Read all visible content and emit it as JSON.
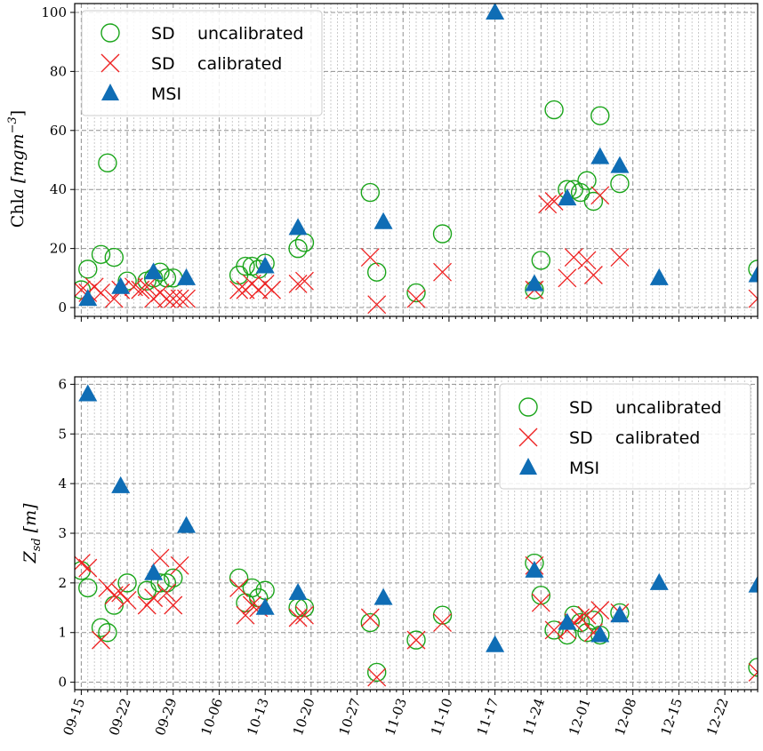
{
  "chart_data": [
    {
      "type": "scatter",
      "title": "",
      "xlabel": "",
      "ylabel": "Chl a [mg m^-3]",
      "ylabel_parts": {
        "main": "Chl",
        "italic": "a",
        "unit": "[mgm",
        "sup": "−3",
        "close": "]"
      },
      "xlim": [
        -1,
        103
      ],
      "ylim": [
        -3,
        103
      ],
      "yticks": [
        0,
        20,
        40,
        60,
        80,
        100
      ],
      "x_ticks": [
        {
          "day": 0,
          "label": "09-15"
        },
        {
          "day": 7,
          "label": "09-22"
        },
        {
          "day": 14,
          "label": "09-29"
        },
        {
          "day": 21,
          "label": "10-06"
        },
        {
          "day": 28,
          "label": "10-13"
        },
        {
          "day": 35,
          "label": "10-20"
        },
        {
          "day": 42,
          "label": "10-27"
        },
        {
          "day": 49,
          "label": "11-03"
        },
        {
          "day": 56,
          "label": "11-10"
        },
        {
          "day": 63,
          "label": "11-17"
        },
        {
          "day": 70,
          "label": "11-24"
        },
        {
          "day": 77,
          "label": "12-01"
        },
        {
          "day": 84,
          "label": "12-08"
        },
        {
          "day": 91,
          "label": "12-15"
        },
        {
          "day": 98,
          "label": "12-22"
        }
      ],
      "legend": {
        "location": "top-left",
        "entries": [
          {
            "series": "SD uncalibrated",
            "word1": "SD",
            "word2": "uncalibrated"
          },
          {
            "series": "SD calibrated",
            "word1": "SD",
            "word2": "calibrated"
          },
          {
            "series": "MSI",
            "word1": "MSI",
            "word2": ""
          }
        ]
      },
      "series": [
        {
          "name": "SD uncalibrated",
          "marker": "circle",
          "color": "#1aa51a",
          "x": [
            0,
            1,
            3,
            4,
            5,
            7,
            10,
            11,
            12,
            13,
            14,
            24,
            25,
            26,
            27,
            28,
            33,
            34,
            44,
            45,
            51,
            55,
            69,
            70,
            72,
            74,
            75,
            76,
            77,
            78,
            79,
            82,
            103
          ],
          "y": [
            6,
            13,
            18,
            49,
            17,
            9,
            9,
            10,
            12,
            10,
            10,
            11,
            14,
            14,
            13,
            15,
            20,
            22,
            39,
            12,
            5,
            25,
            6,
            16,
            67,
            40,
            40,
            39,
            43,
            36,
            65,
            42,
            13
          ]
        },
        {
          "name": "SD calibrated",
          "marker": "x",
          "color": "#ee2222",
          "x": [
            0,
            1,
            2,
            3,
            5,
            6,
            8,
            9,
            10,
            11,
            12,
            13,
            14,
            15,
            16,
            24,
            25,
            26,
            27,
            28,
            29,
            33,
            34,
            44,
            45,
            51,
            55,
            69,
            71,
            72,
            74,
            75,
            77,
            78,
            79,
            82,
            103
          ],
          "y": [
            6,
            5,
            7,
            5,
            3,
            6,
            7,
            6,
            7,
            3,
            5,
            3,
            3,
            3,
            3,
            6,
            6,
            8,
            6,
            8,
            6,
            8,
            9,
            17,
            1,
            3,
            12,
            6,
            35,
            36,
            10,
            17,
            16,
            11,
            38,
            17,
            3
          ]
        },
        {
          "name": "MSI",
          "marker": "triangle",
          "color": "#0f6db5",
          "x": [
            1,
            6,
            11,
            16,
            28,
            33,
            46,
            63,
            69,
            74,
            79,
            82,
            88,
            103
          ],
          "y": [
            3,
            7,
            12,
            10,
            14,
            27,
            29,
            100,
            8,
            37,
            51,
            48,
            10,
            11
          ]
        }
      ]
    },
    {
      "type": "scatter",
      "title": "",
      "xlabel": "",
      "ylabel": "Z_sd [m]",
      "ylabel_parts": {
        "main": "Z",
        "sub": "sd",
        "unit": "[m]"
      },
      "xlim": [
        -1,
        103
      ],
      "ylim": [
        -0.15,
        6.15
      ],
      "yticks": [
        0,
        1,
        2,
        3,
        4,
        5,
        6
      ],
      "x_ticks": [
        {
          "day": 0,
          "label": "09-15"
        },
        {
          "day": 7,
          "label": "09-22"
        },
        {
          "day": 14,
          "label": "09-29"
        },
        {
          "day": 21,
          "label": "10-06"
        },
        {
          "day": 28,
          "label": "10-13"
        },
        {
          "day": 35,
          "label": "10-20"
        },
        {
          "day": 42,
          "label": "10-27"
        },
        {
          "day": 49,
          "label": "11-03"
        },
        {
          "day": 56,
          "label": "11-10"
        },
        {
          "day": 63,
          "label": "11-17"
        },
        {
          "day": 70,
          "label": "11-24"
        },
        {
          "day": 77,
          "label": "12-01"
        },
        {
          "day": 84,
          "label": "12-08"
        },
        {
          "day": 91,
          "label": "12-15"
        },
        {
          "day": 98,
          "label": "12-22"
        }
      ],
      "legend": {
        "location": "top-right",
        "entries": [
          {
            "series": "SD uncalibrated",
            "word1": "SD",
            "word2": "uncalibrated"
          },
          {
            "series": "SD calibrated",
            "word1": "SD",
            "word2": "calibrated"
          },
          {
            "series": "MSI",
            "word1": "MSI",
            "word2": ""
          }
        ]
      },
      "series": [
        {
          "name": "SD uncalibrated",
          "marker": "circle",
          "color": "#1aa51a",
          "x": [
            0,
            1,
            3,
            4,
            5,
            7,
            10,
            12,
            13,
            14,
            24,
            25,
            26,
            27,
            28,
            33,
            34,
            44,
            45,
            51,
            55,
            69,
            70,
            72,
            74,
            75,
            76,
            77,
            78,
            79,
            82,
            103
          ],
          "y": [
            2.25,
            1.9,
            1.1,
            1.0,
            1.55,
            2.0,
            1.85,
            2.0,
            2.0,
            2.1,
            2.1,
            1.6,
            1.9,
            1.7,
            1.85,
            1.5,
            1.5,
            1.2,
            0.2,
            0.85,
            1.35,
            2.4,
            1.75,
            1.05,
            0.95,
            1.35,
            1.2,
            1.0,
            1.25,
            0.95,
            1.4,
            0.3
          ]
        },
        {
          "name": "SD calibrated",
          "marker": "x",
          "color": "#ee2222",
          "x": [
            0,
            1,
            3,
            4,
            5,
            6,
            7,
            10,
            11,
            12,
            13,
            14,
            15,
            24,
            25,
            26,
            27,
            33,
            34,
            44,
            45,
            51,
            55,
            69,
            70,
            72,
            74,
            75,
            76,
            77,
            78,
            79,
            82,
            103
          ],
          "y": [
            2.4,
            2.3,
            0.85,
            1.9,
            1.75,
            1.8,
            1.65,
            1.55,
            1.7,
            2.5,
            1.8,
            1.55,
            2.35,
            1.9,
            1.35,
            1.55,
            1.5,
            1.3,
            1.35,
            1.3,
            0.1,
            0.85,
            1.2,
            2.35,
            1.6,
            1.05,
            1.05,
            1.2,
            1.3,
            1.35,
            1.0,
            1.45,
            1.4,
            0.2
          ]
        },
        {
          "name": "MSI",
          "marker": "triangle",
          "color": "#0f6db5",
          "x": [
            1,
            6,
            11,
            16,
            28,
            33,
            46,
            63,
            69,
            74,
            79,
            82,
            88,
            103
          ],
          "y": [
            5.8,
            3.95,
            2.2,
            3.15,
            1.5,
            1.8,
            1.7,
            0.75,
            2.25,
            1.2,
            0.95,
            1.35,
            2.0,
            1.95
          ]
        }
      ]
    }
  ]
}
